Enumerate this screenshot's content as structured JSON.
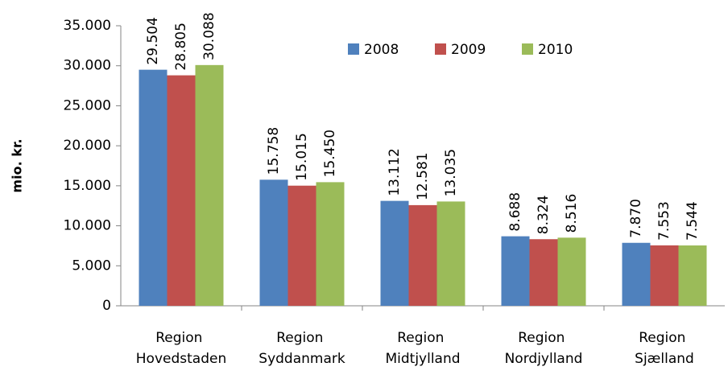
{
  "chart_data": {
    "type": "bar",
    "y_label": "mio. kr.",
    "categories": [
      "Region Hovedstaden",
      "Region Syddanmark",
      "Region Midtjylland",
      "Region Nordjylland",
      "Region Sjælland"
    ],
    "series": [
      {
        "name": "2008",
        "color": "#4f81bd",
        "values": [
          29504,
          15758,
          13112,
          8688,
          7870
        ],
        "value_labels": [
          "29.504",
          "15.758",
          "13.112",
          "8.688",
          "7.870"
        ]
      },
      {
        "name": "2009",
        "color": "#c0504d",
        "values": [
          28805,
          15015,
          12581,
          8324,
          7553
        ],
        "value_labels": [
          "28.805",
          "15.015",
          "12.581",
          "8.324",
          "7.553"
        ]
      },
      {
        "name": "2010",
        "color": "#9bbb59",
        "values": [
          30088,
          15450,
          13035,
          8516,
          7544
        ],
        "value_labels": [
          "30.088",
          "15.450",
          "13.035",
          "8.516",
          "7.544"
        ]
      }
    ],
    "ylim": [
      0,
      35000
    ],
    "yticks": [
      0,
      {
        "value": 5000,
        "label": "5.000"
      },
      {
        "value": 10000,
        "label": "10.000"
      },
      {
        "value": 15000,
        "label": "15.000"
      },
      {
        "value": 20000,
        "label": "20.000"
      },
      {
        "value": 25000,
        "label": "25.000"
      },
      {
        "value": 30000,
        "label": "30.000"
      },
      {
        "value": 35000,
        "label": "35.000"
      }
    ],
    "grid": false
  }
}
